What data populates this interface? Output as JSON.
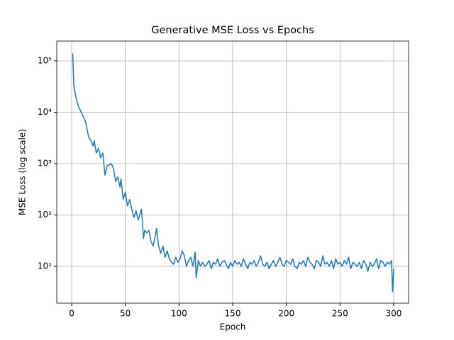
{
  "chart_data": {
    "type": "line",
    "title": "Generative MSE Loss vs Epochs",
    "xlabel": "Epoch",
    "ylabel": "MSE Loss (log scale)",
    "x": [
      1,
      2,
      3,
      5,
      7,
      10,
      13,
      15,
      16,
      18,
      20,
      21,
      23,
      25,
      27,
      29,
      31,
      33,
      35,
      37,
      39,
      41,
      43,
      45,
      46,
      48,
      50,
      52,
      54,
      56,
      58,
      60,
      62,
      64,
      65,
      67,
      68,
      70,
      72,
      74,
      76,
      78,
      79,
      81,
      83,
      85,
      87,
      89,
      91,
      93,
      95,
      97,
      99,
      101,
      103,
      105,
      107,
      109,
      111,
      113,
      115,
      116,
      118,
      120,
      122,
      124,
      126,
      128,
      130,
      132,
      134,
      136,
      138,
      140,
      142,
      144,
      146,
      148,
      150,
      152,
      154,
      156,
      158,
      160,
      162,
      164,
      166,
      168,
      170,
      172,
      174,
      176,
      178,
      180,
      182,
      184,
      186,
      188,
      190,
      192,
      194,
      196,
      198,
      200,
      202,
      204,
      206,
      208,
      210,
      212,
      214,
      216,
      218,
      220,
      222,
      224,
      226,
      228,
      230,
      232,
      234,
      236,
      238,
      240,
      242,
      244,
      246,
      248,
      250,
      252,
      254,
      256,
      258,
      260,
      262,
      264,
      266,
      268,
      270,
      272,
      274,
      276,
      278,
      280,
      282,
      284,
      286,
      288,
      290,
      292,
      294,
      296,
      298,
      299,
      300
    ],
    "series": [
      {
        "color": "#1f77b4",
        "values": [
          140000,
          33000,
          25000,
          16000,
          12000,
          9000,
          6500,
          4000,
          3200,
          2800,
          2200,
          2800,
          1600,
          2000,
          1300,
          1600,
          600,
          900,
          950,
          1000,
          800,
          450,
          550,
          350,
          500,
          200,
          280,
          150,
          200,
          130,
          90,
          120,
          80,
          110,
          130,
          35,
          50,
          45,
          50,
          30,
          25,
          40,
          55,
          25,
          18,
          25,
          15,
          20,
          14,
          12,
          11,
          15,
          12,
          14,
          20,
          16,
          10,
          13,
          15,
          10,
          19,
          6,
          13,
          10,
          12,
          10,
          11,
          13,
          9,
          12,
          11,
          14,
          10,
          12,
          13,
          11,
          9,
          12,
          10,
          13,
          11,
          12,
          10,
          14,
          11,
          9,
          12,
          11,
          13,
          10,
          12,
          16,
          11,
          10,
          12,
          9,
          11,
          13,
          10,
          12,
          15,
          11,
          10,
          13,
          12,
          11,
          14,
          10,
          9,
          12,
          11,
          13,
          10,
          15,
          12,
          11,
          9,
          13,
          12,
          10,
          16,
          11,
          12,
          10,
          13,
          9,
          14,
          11,
          12,
          10,
          13,
          11,
          15,
          9,
          12,
          11,
          10,
          12,
          9,
          13,
          11,
          8,
          12,
          10,
          11,
          14,
          9,
          13,
          12,
          10,
          12,
          11,
          13,
          3.2,
          9
        ]
      }
    ],
    "xlim": [
      -13.9,
      313.9
    ],
    "ylim": [
      1.92,
      243000
    ],
    "yscale": "log",
    "xticks": [
      0,
      50,
      100,
      150,
      200,
      250,
      300
    ],
    "yticks": [
      {
        "value": 10,
        "label": "10¹"
      },
      {
        "value": 100,
        "label": "10²"
      },
      {
        "value": 1000,
        "label": "10³"
      },
      {
        "value": 10000,
        "label": "10⁴"
      },
      {
        "value": 100000,
        "label": "10⁵"
      }
    ],
    "grid": true
  }
}
